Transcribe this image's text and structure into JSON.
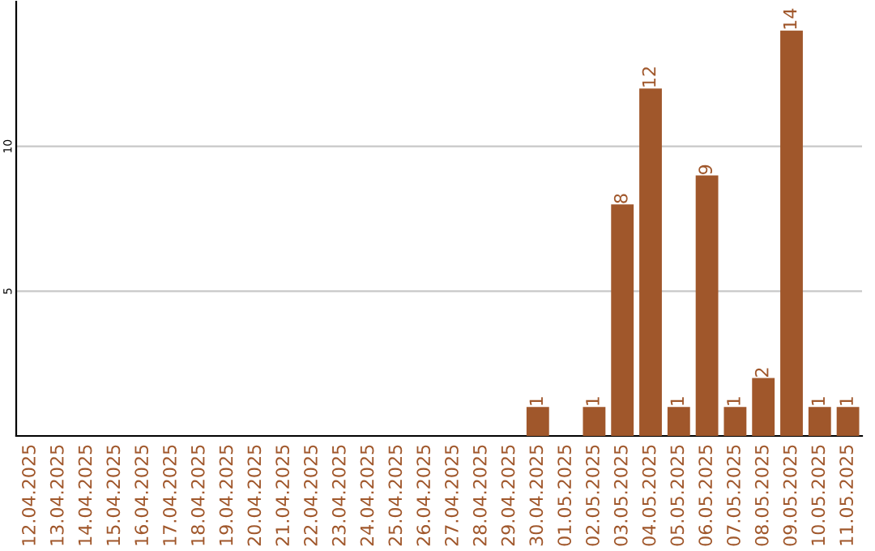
{
  "chart_data": {
    "type": "bar",
    "categories": [
      "12.04.2025",
      "13.04.2025",
      "14.04.2025",
      "15.04.2025",
      "16.04.2025",
      "17.04.2025",
      "18.04.2025",
      "19.04.2025",
      "20.04.2025",
      "21.04.2025",
      "22.04.2025",
      "23.04.2025",
      "24.04.2025",
      "25.04.2025",
      "26.04.2025",
      "27.04.2025",
      "28.04.2025",
      "29.04.2025",
      "30.04.2025",
      "01.05.2025",
      "02.05.2025",
      "03.05.2025",
      "04.05.2025",
      "05.05.2025",
      "06.05.2025",
      "07.05.2025",
      "08.05.2025",
      "09.05.2025",
      "10.05.2025",
      "11.05.2025"
    ],
    "values": [
      0,
      0,
      0,
      0,
      0,
      0,
      0,
      0,
      0,
      0,
      0,
      0,
      0,
      0,
      0,
      0,
      0,
      0,
      1,
      0,
      1,
      8,
      12,
      1,
      9,
      1,
      2,
      14,
      1,
      1
    ],
    "value_labels": [
      null,
      null,
      null,
      null,
      null,
      null,
      null,
      null,
      null,
      null,
      null,
      null,
      null,
      null,
      null,
      null,
      null,
      null,
      "1",
      null,
      "1",
      "8",
      "12",
      "1",
      "9",
      "1",
      "2",
      "14",
      "1",
      "1"
    ],
    "color": "#a0572b",
    "ylim": [
      0,
      15
    ],
    "yticks": [
      5,
      10
    ],
    "grid": "y",
    "legend": false
  }
}
